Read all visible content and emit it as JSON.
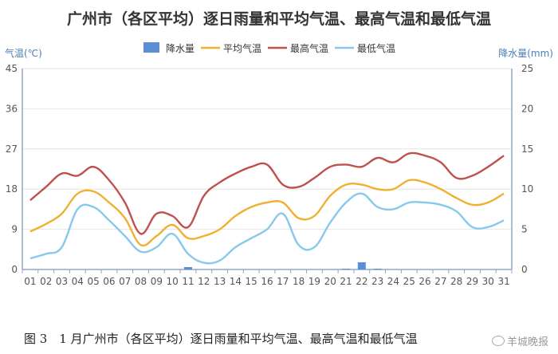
{
  "chart_data": {
    "type": "line",
    "title": "广州市（各区平均）逐日雨量和平均气温、最高气温和最低气温",
    "y_left_label": "气温(℃)",
    "y_right_label": "降水量(mm)",
    "y_left_ticks": [
      "0",
      "9",
      "18",
      "27",
      "36",
      "45"
    ],
    "y_right_ticks": [
      "0",
      "5",
      "10",
      "15",
      "20",
      "25"
    ],
    "y_left_range": [
      0,
      45
    ],
    "y_right_range": [
      0,
      25
    ],
    "categories": [
      "01",
      "02",
      "03",
      "04",
      "05",
      "06",
      "07",
      "08",
      "09",
      "10",
      "11",
      "12",
      "13",
      "14",
      "15",
      "16",
      "17",
      "18",
      "19",
      "20",
      "21",
      "22",
      "23",
      "24",
      "25",
      "26",
      "27",
      "28",
      "29",
      "30",
      "31"
    ],
    "legend": [
      "降水量",
      "平均气温",
      "最高气温",
      "最低气温"
    ],
    "series": [
      {
        "name": "降水量",
        "type": "bar",
        "axis": "right",
        "color": "#5b8ed6",
        "values": [
          0,
          0,
          0,
          0,
          0,
          0,
          0,
          0,
          0,
          0,
          0.3,
          0,
          0,
          0,
          0,
          0,
          0,
          0,
          0,
          0,
          0.1,
          0.9,
          0.1,
          0,
          0,
          0,
          0,
          0,
          0,
          0,
          0
        ]
      },
      {
        "name": "平均气温",
        "type": "line",
        "axis": "left",
        "color": "#f0b030",
        "values": [
          8.5,
          10.2,
          12.5,
          17.0,
          17.5,
          15.0,
          11.5,
          5.5,
          7.5,
          10.0,
          7.0,
          7.5,
          9.0,
          12.0,
          14.0,
          15.0,
          15.0,
          11.5,
          12.0,
          16.5,
          19.0,
          19.0,
          18.0,
          18.0,
          20.0,
          19.5,
          18.0,
          16.0,
          14.5,
          15.0,
          17.0
        ]
      },
      {
        "name": "最高气温",
        "type": "line",
        "axis": "left",
        "color": "#c0504d",
        "values": [
          15.5,
          18.5,
          21.5,
          21.0,
          23.0,
          20.0,
          15.0,
          8.0,
          12.5,
          12.0,
          9.5,
          16.5,
          19.5,
          21.5,
          23.0,
          23.5,
          19.0,
          18.5,
          20.5,
          23.0,
          23.5,
          23.0,
          25.0,
          24.0,
          26.0,
          25.5,
          24.0,
          20.5,
          21.0,
          23.0,
          25.5
        ]
      },
      {
        "name": "最低气温",
        "type": "line",
        "axis": "left",
        "color": "#87c9ec",
        "values": [
          2.5,
          3.5,
          5.0,
          13.5,
          14.0,
          11.0,
          7.5,
          4.0,
          5.0,
          8.0,
          3.5,
          1.5,
          2.0,
          5.0,
          7.0,
          9.0,
          12.5,
          5.5,
          5.0,
          10.5,
          15.0,
          17.0,
          14.0,
          13.5,
          15.0,
          15.0,
          14.5,
          13.0,
          9.5,
          9.5,
          11.0
        ]
      }
    ]
  },
  "caption": "图 3　1 月广州市（各区平均）逐日雨量和平均气温、最高气温和最低气温",
  "watermark": "羊城晚报"
}
